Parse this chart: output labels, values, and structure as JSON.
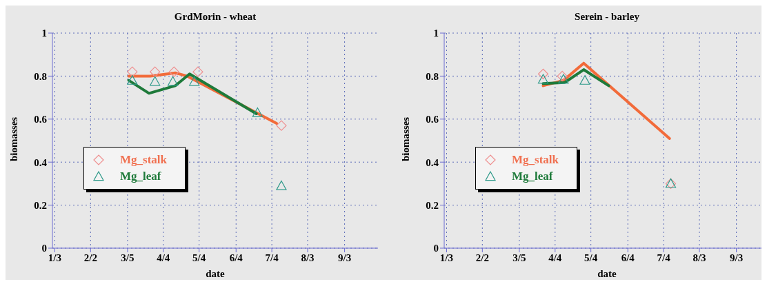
{
  "chart_data": [
    {
      "type": "line",
      "title": "GrdMorin - wheat",
      "xlabel": "date",
      "ylabel": "biomasses",
      "xlim": [
        "--01-01",
        "--10-01"
      ],
      "xticks": [
        {
          "value": "--01-03",
          "label": "1/3"
        },
        {
          "value": "--02-02",
          "label": "2/2"
        },
        {
          "value": "--03-05",
          "label": "3/5"
        },
        {
          "value": "--04-04",
          "label": "4/4"
        },
        {
          "value": "--05-04",
          "label": "5/4"
        },
        {
          "value": "--06-04",
          "label": "6/4"
        },
        {
          "value": "--07-04",
          "label": "7/4"
        },
        {
          "value": "--08-03",
          "label": "8/3"
        },
        {
          "value": "--09-03",
          "label": "9/3"
        }
      ],
      "ylim": [
        0,
        1
      ],
      "yticks": [
        0,
        0.2,
        0.4,
        0.6,
        0.8,
        1
      ],
      "grid": true,
      "legend": "left",
      "series": [
        {
          "type": "line",
          "color": "#f26b3a",
          "marker": "none",
          "x": [
            "--03-06",
            "--03-24",
            "--04-14",
            "--04-24",
            "--07-08"
          ],
          "values": [
            0.8,
            0.8,
            0.815,
            0.8,
            0.58
          ]
        },
        {
          "type": "line",
          "color": "#1e7a3a",
          "marker": "none",
          "x": [
            "--03-06",
            "--03-23",
            "--04-14",
            "--04-26",
            "--06-21"
          ],
          "values": [
            0.78,
            0.72,
            0.755,
            0.81,
            0.625
          ]
        },
        {
          "type": "scatter",
          "name": "Mg_stalk",
          "color": "#ef8f8f",
          "marker": "diamond",
          "x": [
            "--03-09",
            "--03-28",
            "--04-13",
            "--05-03",
            "--07-12"
          ],
          "values": [
            0.82,
            0.82,
            0.82,
            0.82,
            0.57
          ]
        },
        {
          "type": "scatter",
          "name": "Mg_leaf",
          "color": "#2f9a8a",
          "marker": "triangle",
          "x": [
            "--03-09",
            "--03-28",
            "--04-12",
            "--04-30",
            "--06-22",
            "--07-12"
          ],
          "values": [
            0.78,
            0.775,
            0.775,
            0.775,
            0.63,
            0.29
          ]
        }
      ]
    },
    {
      "type": "line",
      "title": "Serein - barley",
      "xlabel": "date",
      "ylabel": "biomasses",
      "xlim": [
        "--01-01",
        "--10-01"
      ],
      "xticks": [
        {
          "value": "--01-03",
          "label": "1/3"
        },
        {
          "value": "--02-02",
          "label": "2/2"
        },
        {
          "value": "--03-05",
          "label": "3/5"
        },
        {
          "value": "--04-04",
          "label": "4/4"
        },
        {
          "value": "--05-04",
          "label": "5/4"
        },
        {
          "value": "--06-04",
          "label": "6/4"
        },
        {
          "value": "--07-04",
          "label": "7/4"
        },
        {
          "value": "--08-03",
          "label": "8/3"
        },
        {
          "value": "--09-03",
          "label": "9/3"
        }
      ],
      "ylim": [
        0,
        1
      ],
      "yticks": [
        0,
        0.2,
        0.4,
        0.6,
        0.8,
        1
      ],
      "grid": true,
      "legend": "left",
      "series": [
        {
          "type": "line",
          "color": "#f26b3a",
          "marker": "none",
          "x": [
            "--03-25",
            "--04-11",
            "--04-28",
            "--07-09"
          ],
          "values": [
            0.755,
            0.78,
            0.86,
            0.51
          ]
        },
        {
          "type": "line",
          "color": "#1e7a3a",
          "marker": "none",
          "x": [
            "--03-25",
            "--04-12",
            "--04-28",
            "--05-19"
          ],
          "values": [
            0.765,
            0.77,
            0.83,
            0.755
          ]
        },
        {
          "type": "scatter",
          "name": "Mg_stalk",
          "color": "#ef8f8f",
          "marker": "diamond",
          "x": [
            "--03-25",
            "--04-10",
            "--07-10"
          ],
          "values": [
            0.81,
            0.8,
            0.3
          ]
        },
        {
          "type": "scatter",
          "name": "Mg_leaf",
          "color": "#2f9a8a",
          "marker": "triangle",
          "x": [
            "--03-25",
            "--04-11",
            "--04-29",
            "--07-10"
          ],
          "values": [
            0.785,
            0.785,
            0.78,
            0.3
          ]
        }
      ]
    }
  ]
}
